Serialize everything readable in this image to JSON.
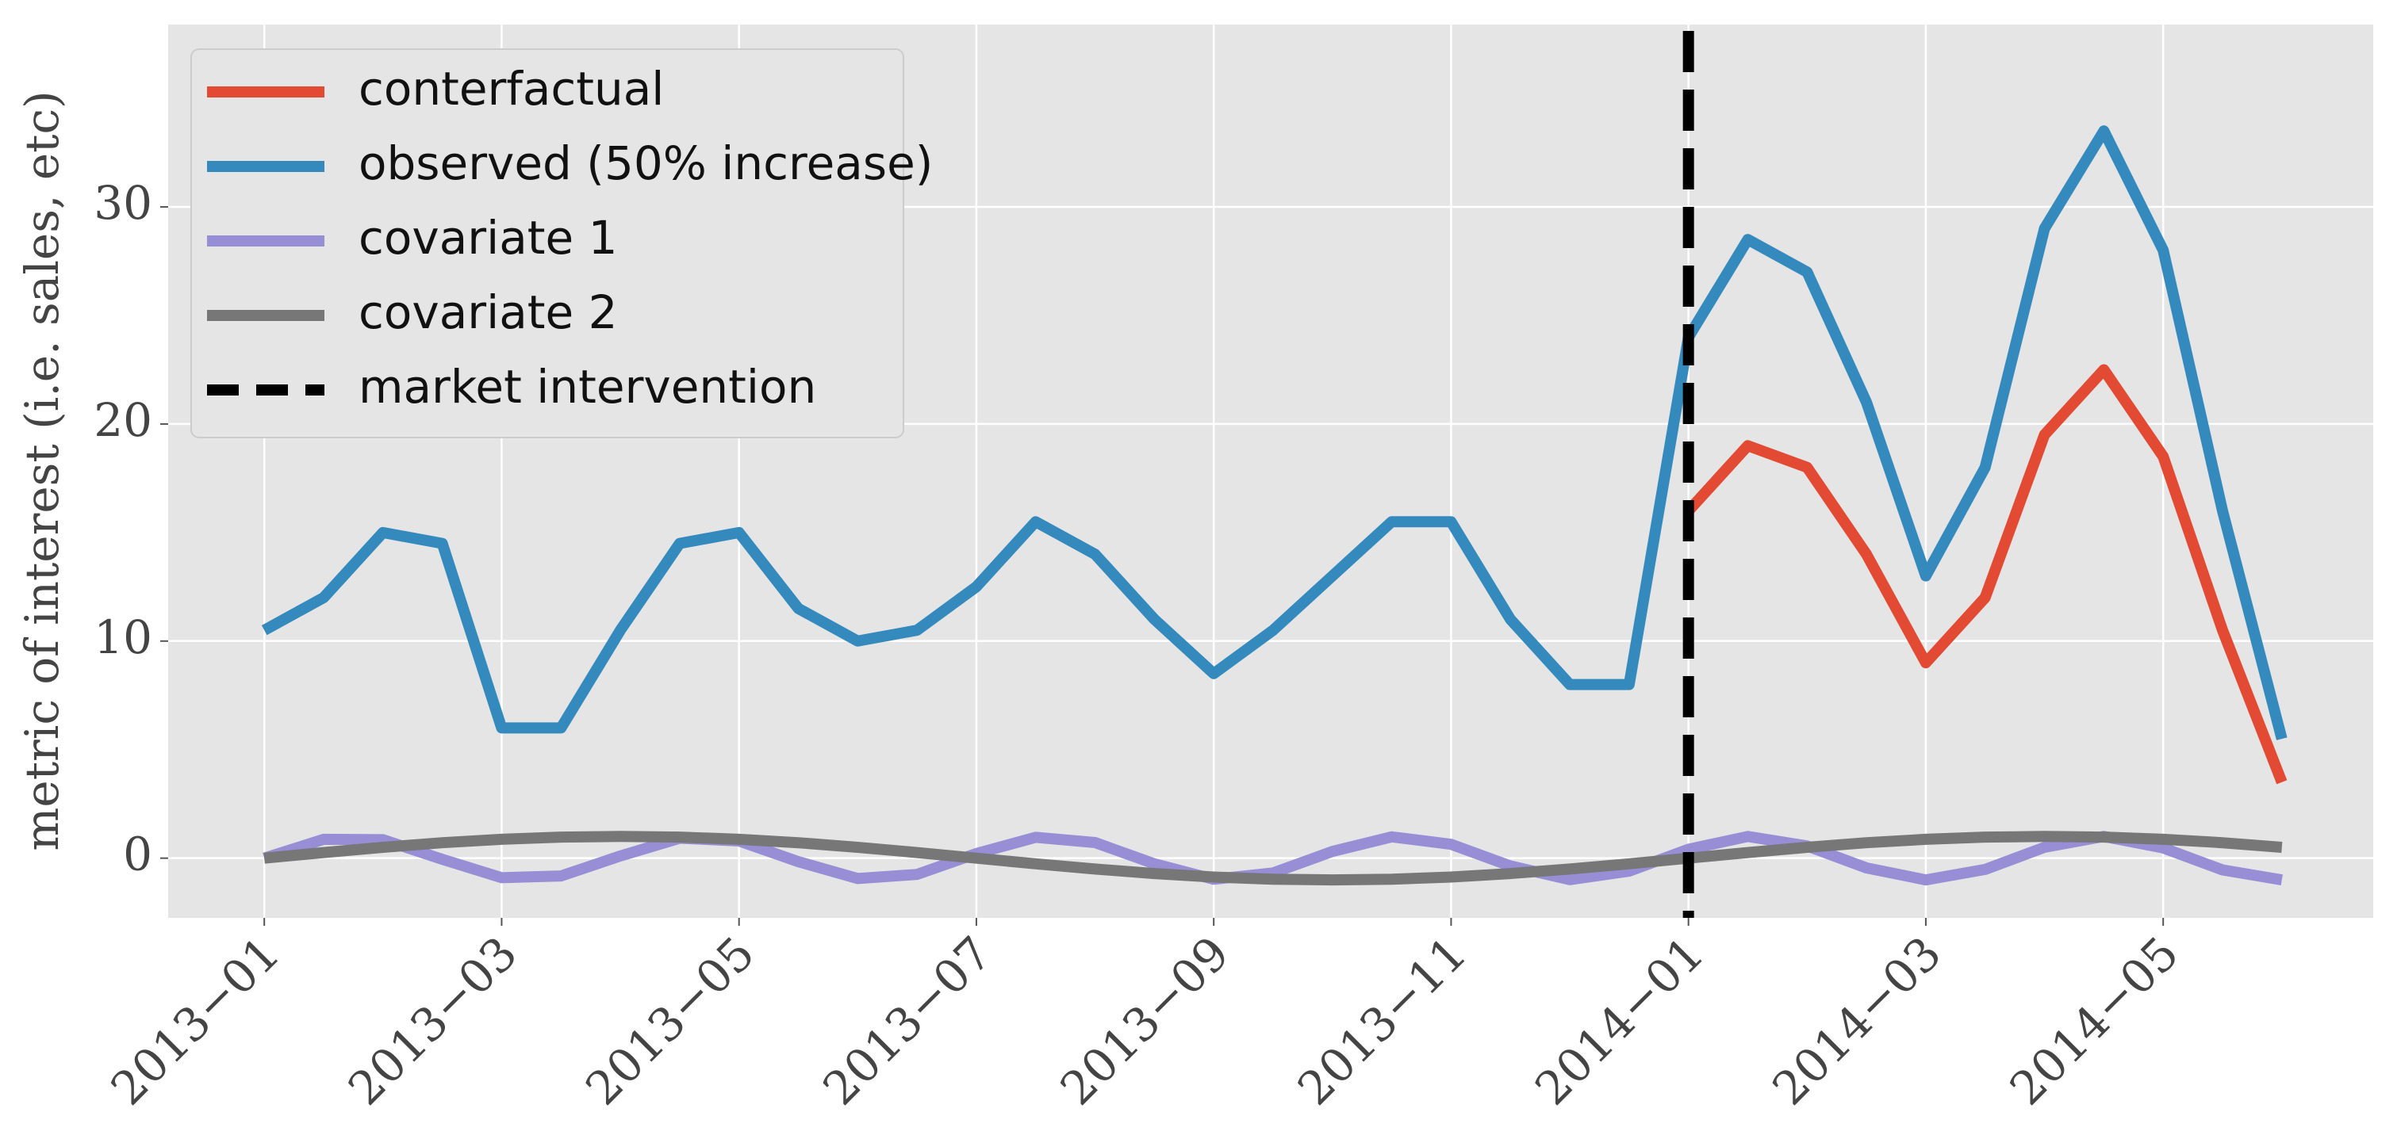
{
  "chart_data": {
    "type": "line",
    "ylabel": "metric of interest (i.e. sales, etc)",
    "x": [
      0,
      0.5,
      1,
      1.5,
      2,
      2.5,
      3,
      3.5,
      4,
      4.5,
      5,
      5.5,
      6,
      6.5,
      7,
      7.5,
      8,
      8.5,
      9,
      9.5,
      10,
      10.5,
      11,
      11.5,
      12,
      12.5,
      13,
      13.5,
      14,
      14.5,
      15,
      15.5,
      16,
      16.5,
      17
    ],
    "series": [
      {
        "name": "conterfactual",
        "color": "#E24A33",
        "values": [
          null,
          null,
          null,
          null,
          null,
          null,
          null,
          null,
          null,
          null,
          null,
          null,
          null,
          null,
          null,
          null,
          null,
          null,
          null,
          null,
          null,
          null,
          null,
          null,
          16,
          19,
          18,
          14,
          9,
          12,
          19.5,
          22.5,
          18.5,
          10.5,
          3.5
        ]
      },
      {
        "name": "observed (50% increase)",
        "color": "#348ABD",
        "values": [
          10.5,
          12,
          15,
          14.5,
          6,
          6,
          10.5,
          14.5,
          15,
          11.5,
          10,
          10.5,
          12.5,
          15.5,
          14,
          11,
          8.5,
          10.5,
          13,
          15.5,
          15.5,
          11,
          8,
          8,
          24,
          28.5,
          27,
          21,
          13,
          18,
          29,
          33.5,
          28,
          16,
          5.5
        ]
      },
      {
        "name": "covariate 1",
        "color": "#988ED5",
        "values": [
          0,
          0.87,
          0.85,
          -0.05,
          -0.9,
          -0.82,
          0.1,
          0.92,
          0.79,
          -0.16,
          -0.94,
          -0.75,
          0.21,
          0.96,
          0.72,
          -0.26,
          -0.97,
          -0.68,
          0.31,
          0.98,
          0.64,
          -0.36,
          -0.99,
          -0.6,
          0.41,
          1,
          0.56,
          -0.45,
          -1,
          -0.52,
          0.5,
          1,
          0.47,
          -0.54,
          -1
        ]
      },
      {
        "name": "covariate 2",
        "color": "#777777",
        "values": [
          0,
          0.26,
          0.5,
          0.71,
          0.87,
          0.97,
          1,
          0.97,
          0.87,
          0.71,
          0.5,
          0.26,
          0,
          -0.26,
          -0.5,
          -0.71,
          -0.87,
          -0.97,
          -1,
          -0.97,
          -0.87,
          -0.71,
          -0.5,
          -0.26,
          0,
          0.26,
          0.5,
          0.71,
          0.87,
          0.97,
          1,
          0.97,
          0.87,
          0.71,
          0.5
        ]
      }
    ],
    "intervention": {
      "x": 12,
      "name": "market intervention",
      "color": "#000000",
      "linestyle": "dashed"
    },
    "xlim": [
      -0.81,
      17.77
    ],
    "ylim": [
      -2.75,
      38.4
    ],
    "xticks": [
      {
        "value": 0,
        "label": "2013−01"
      },
      {
        "value": 2,
        "label": "2013−03"
      },
      {
        "value": 4,
        "label": "2013−05"
      },
      {
        "value": 6,
        "label": "2013−07"
      },
      {
        "value": 8,
        "label": "2013−09"
      },
      {
        "value": 10,
        "label": "2013−11"
      },
      {
        "value": 12,
        "label": "2014−01"
      },
      {
        "value": 14,
        "label": "2014−03"
      },
      {
        "value": 16,
        "label": "2014−05"
      }
    ],
    "yticks": [
      0,
      10,
      20,
      30
    ],
    "grid": true,
    "legend": "upper left"
  }
}
